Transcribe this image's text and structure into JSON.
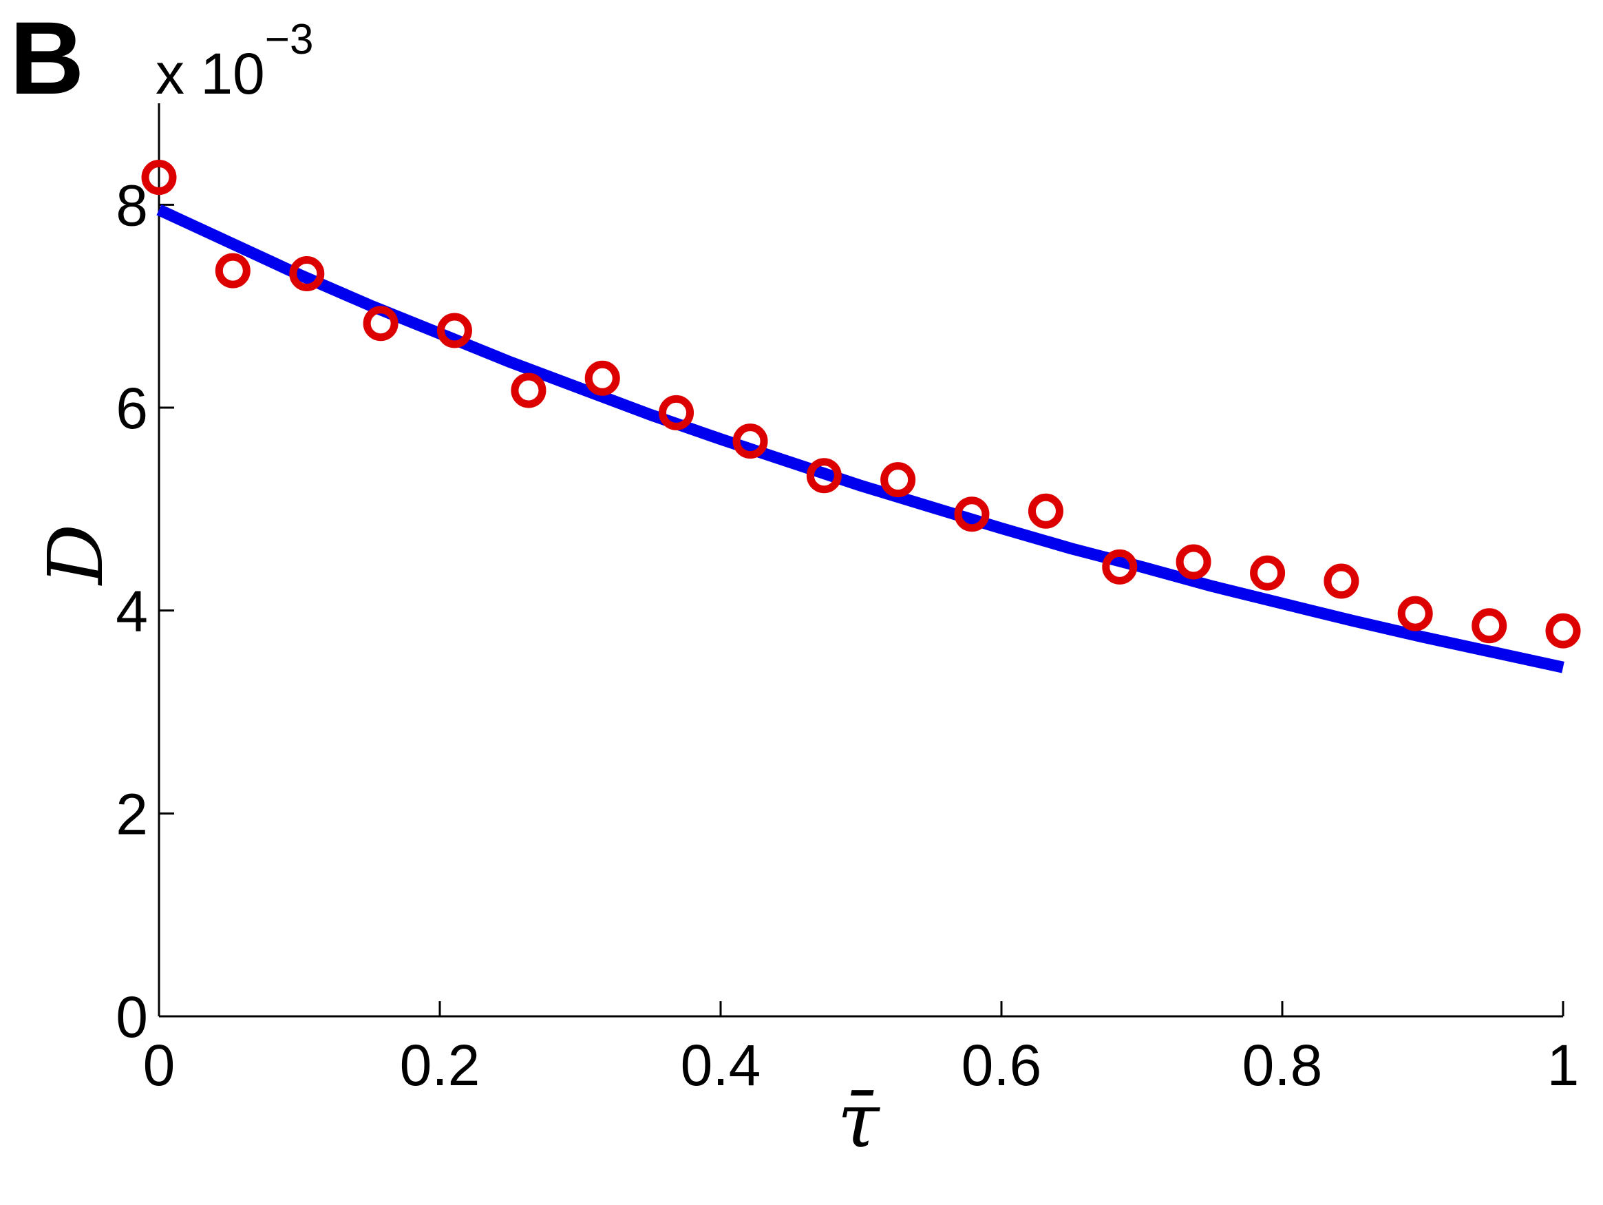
{
  "panel_label": "B",
  "exponent_label": {
    "base": "x 10",
    "power": "−3"
  },
  "chart_data": {
    "type": "scatter",
    "xlabel": "τ̄",
    "ylabel": "D",
    "xlim": [
      0,
      1
    ],
    "ylim": [
      0,
      9
    ],
    "y_scale_factor": "x 10^-3",
    "xticks": [
      0,
      0.2,
      0.4,
      0.6,
      0.8,
      1
    ],
    "xtick_labels": [
      "0",
      "0.2",
      "0.4",
      "0.6",
      "0.8",
      "1"
    ],
    "yticks": [
      0,
      2,
      4,
      6,
      8
    ],
    "ytick_labels": [
      "0",
      "2",
      "4",
      "6",
      "8"
    ],
    "grid": false,
    "series": [
      {
        "kind": "line",
        "color": "#0000ee",
        "x": [
          0,
          0.05,
          0.1,
          0.15,
          0.2,
          0.25,
          0.3,
          0.35,
          0.4,
          0.45,
          0.5,
          0.55,
          0.6,
          0.65,
          0.7,
          0.75,
          0.8,
          0.85,
          0.9,
          0.95,
          1.0
        ],
        "y": [
          7.95,
          7.63,
          7.31,
          7.01,
          6.73,
          6.45,
          6.19,
          5.93,
          5.69,
          5.46,
          5.23,
          5.02,
          4.81,
          4.61,
          4.43,
          4.24,
          4.07,
          3.9,
          3.74,
          3.59,
          3.44
        ]
      },
      {
        "kind": "markers",
        "marker": "circle-open",
        "color": "#dd0000",
        "x": [
          0,
          0.0526,
          0.1053,
          0.1579,
          0.2105,
          0.2632,
          0.3158,
          0.3684,
          0.4211,
          0.4737,
          0.5263,
          0.5789,
          0.6316,
          0.6842,
          0.7368,
          0.7895,
          0.8421,
          0.8947,
          0.9474,
          1.0
        ],
        "y": [
          8.27,
          7.35,
          7.32,
          6.83,
          6.76,
          6.17,
          6.29,
          5.95,
          5.67,
          5.33,
          5.29,
          4.95,
          4.98,
          4.43,
          4.48,
          4.37,
          4.29,
          3.97,
          3.85,
          3.8
        ]
      }
    ]
  }
}
